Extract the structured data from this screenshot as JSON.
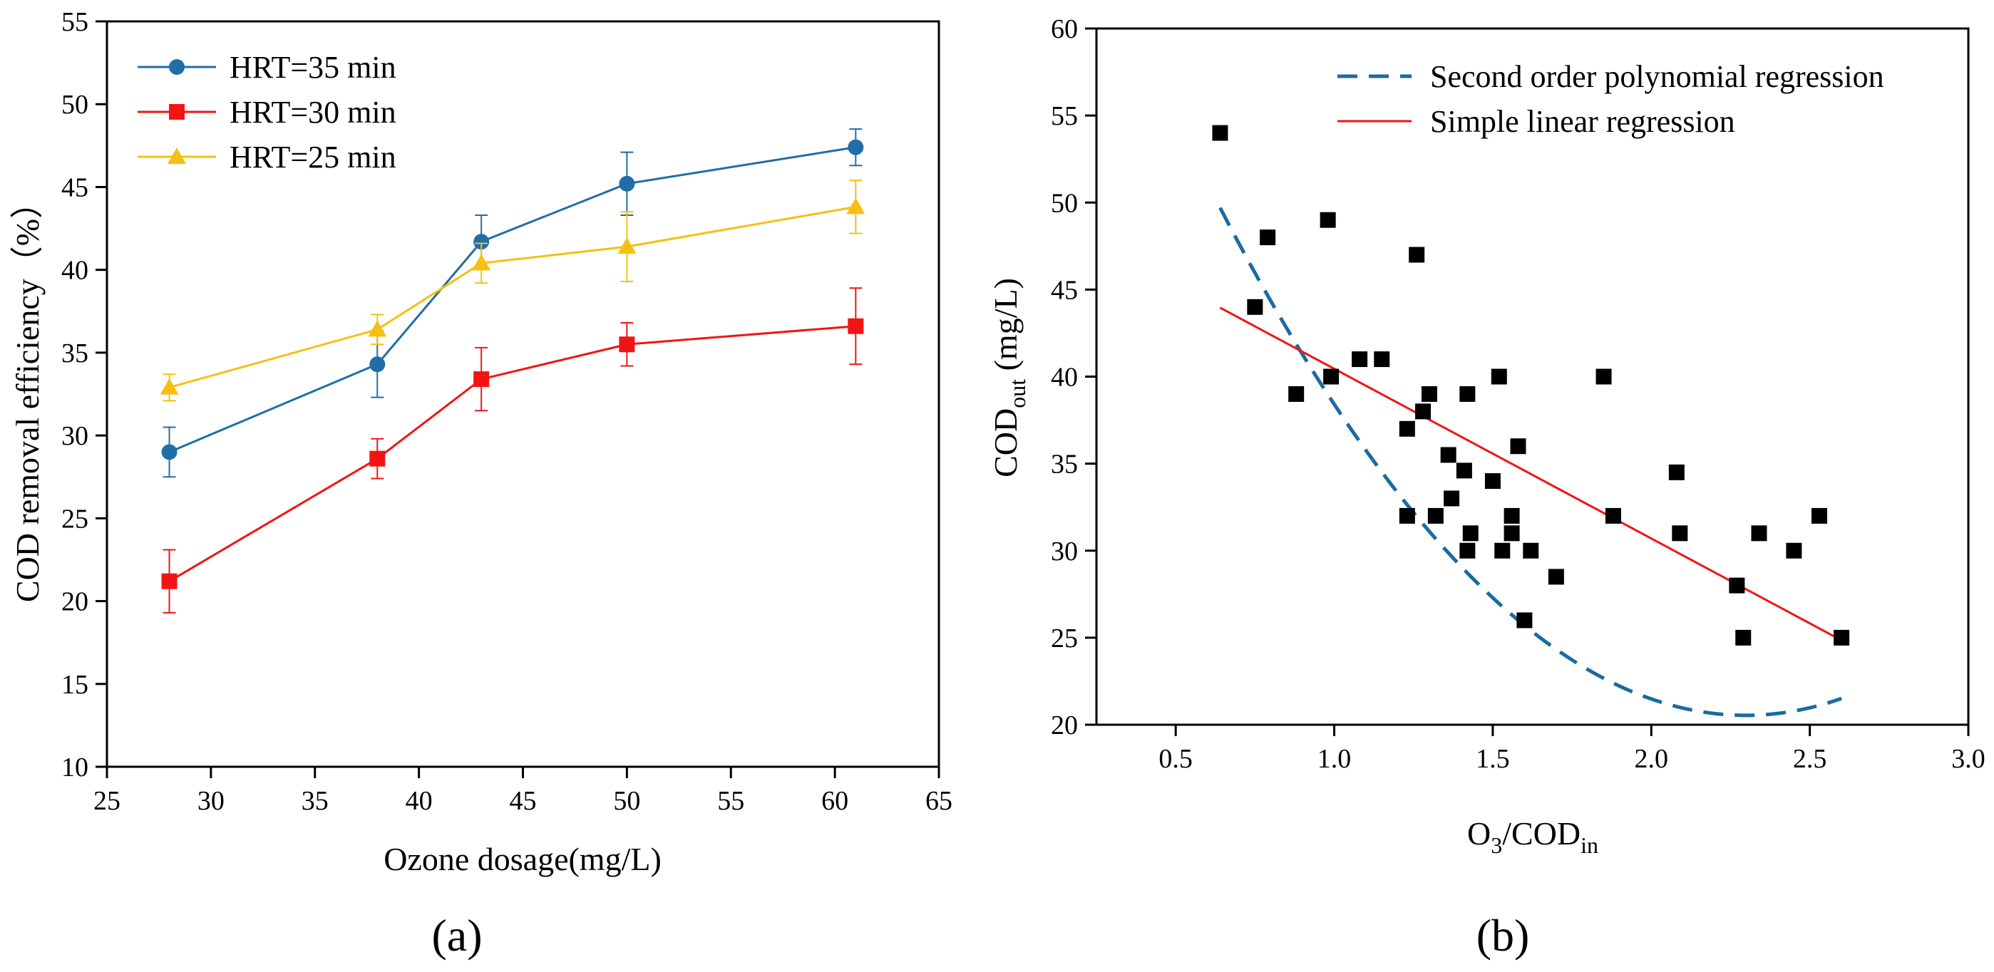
{
  "chart_data": [
    {
      "panel": "a",
      "caption": "(a)",
      "type": "line",
      "title": "",
      "xlabel": "Ozone dosage(mg/L)",
      "ylabel": "COD removal efficiency（%）",
      "xlim": [
        25,
        65
      ],
      "ylim": [
        10,
        55
      ],
      "xticks": [
        25,
        30,
        35,
        40,
        45,
        50,
        55,
        60,
        65
      ],
      "yticks": [
        10,
        15,
        20,
        25,
        30,
        35,
        40,
        45,
        50,
        55
      ],
      "legend_position": "top-left",
      "series": [
        {
          "name": "HRT=35 min",
          "color": "#1f6ea8",
          "marker": "circle",
          "x": [
            28,
            38,
            43,
            50,
            61
          ],
          "y": [
            29.0,
            34.3,
            41.7,
            45.2,
            47.4
          ],
          "err": [
            1.5,
            2.0,
            1.6,
            1.9,
            1.1
          ]
        },
        {
          "name": "HRT=30 min",
          "color": "#f21414",
          "marker": "square",
          "x": [
            28,
            38,
            43,
            50,
            61
          ],
          "y": [
            21.2,
            28.6,
            33.4,
            35.5,
            36.6
          ],
          "err": [
            1.9,
            1.2,
            1.9,
            1.3,
            2.3
          ]
        },
        {
          "name": "HRT=25 min",
          "color": "#f5c012",
          "marker": "triangle",
          "x": [
            28,
            38,
            43,
            50,
            61
          ],
          "y": [
            32.9,
            36.4,
            40.4,
            41.4,
            43.8
          ],
          "err": [
            0.8,
            0.9,
            1.2,
            2.1,
            1.6
          ]
        }
      ]
    },
    {
      "panel": "b",
      "caption": "(b)",
      "type": "scatter",
      "title": "",
      "xlabel_main": "O",
      "xlabel_sub1": "3",
      "xlabel_mid": "/COD",
      "xlabel_sub2": "in",
      "ylabel_main": "COD",
      "ylabel_sub": "out",
      "ylabel_unit": " (mg/L)",
      "xlim": [
        0.25,
        3.0
      ],
      "ylim": [
        20,
        60
      ],
      "xticks": [
        0.5,
        1.0,
        1.5,
        2.0,
        2.5,
        3.0
      ],
      "xtick_labels": [
        "0.5",
        "1.0",
        "1.5",
        "2.0",
        "2.5",
        "3.0"
      ],
      "yticks": [
        20,
        25,
        30,
        35,
        40,
        45,
        50,
        55,
        60
      ],
      "legend_position": "top-right",
      "points": [
        [
          0.64,
          54
        ],
        [
          0.75,
          44
        ],
        [
          0.79,
          48
        ],
        [
          0.88,
          39
        ],
        [
          0.98,
          49
        ],
        [
          0.99,
          40
        ],
        [
          1.08,
          41
        ],
        [
          1.15,
          41
        ],
        [
          1.23,
          37
        ],
        [
          1.23,
          32
        ],
        [
          1.26,
          47
        ],
        [
          1.28,
          38
        ],
        [
          1.3,
          39
        ],
        [
          1.32,
          32
        ],
        [
          1.36,
          35.5
        ],
        [
          1.37,
          33
        ],
        [
          1.41,
          34.6
        ],
        [
          1.42,
          30
        ],
        [
          1.42,
          39
        ],
        [
          1.43,
          31
        ],
        [
          1.5,
          34
        ],
        [
          1.52,
          40
        ],
        [
          1.53,
          30
        ],
        [
          1.56,
          32
        ],
        [
          1.56,
          31
        ],
        [
          1.58,
          36
        ],
        [
          1.6,
          26
        ],
        [
          1.62,
          30
        ],
        [
          1.7,
          28.5
        ],
        [
          1.85,
          40
        ],
        [
          1.88,
          32
        ],
        [
          2.08,
          34.5
        ],
        [
          2.09,
          31
        ],
        [
          2.27,
          28
        ],
        [
          2.29,
          25
        ],
        [
          2.34,
          31
        ],
        [
          2.45,
          30
        ],
        [
          2.53,
          32
        ],
        [
          2.6,
          25
        ]
      ],
      "regressions": [
        {
          "name": "Second order polynomial regression",
          "color": "#1b6aa0",
          "style": "dashed",
          "coef": [
            76.56,
            -48.76,
            10.61
          ],
          "x_range": [
            0.64,
            2.6
          ]
        },
        {
          "name": "Simple linear regression",
          "color": "#f21414",
          "style": "solid",
          "coef": [
            50.2,
            -9.75
          ],
          "x_range": [
            0.64,
            2.6
          ]
        }
      ]
    }
  ]
}
